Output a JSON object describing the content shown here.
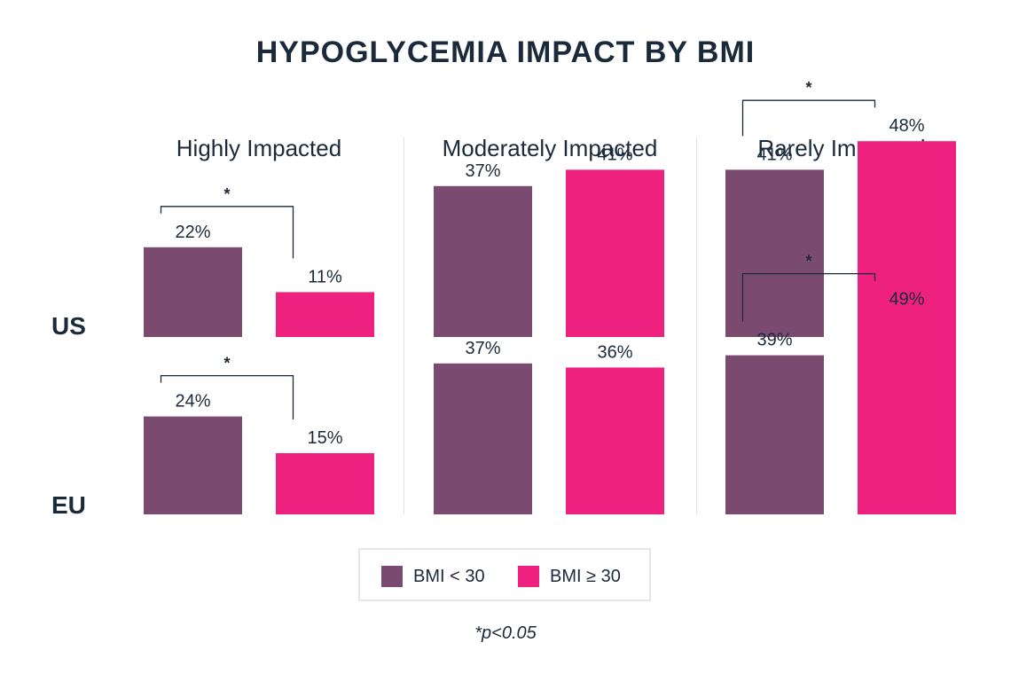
{
  "chart_data": {
    "type": "bar",
    "title": "HYPOGLYCEMIA IMPACT BY BMI",
    "panels": [
      "Highly Impacted",
      "Moderately Impacted",
      "Rarely Impacted"
    ],
    "rows": [
      "US",
      "EU"
    ],
    "series": [
      {
        "name": "BMI < 30",
        "color": "#7b4a70"
      },
      {
        "name": "BMI ≥ 30",
        "color": "#ee2080"
      }
    ],
    "values": {
      "US": [
        [
          22,
          11
        ],
        [
          37,
          41
        ],
        [
          41,
          48
        ]
      ],
      "EU": [
        [
          24,
          15
        ],
        [
          37,
          36
        ],
        [
          39,
          49
        ]
      ]
    },
    "labels": {
      "US": [
        [
          "22%",
          "11%"
        ],
        [
          "37%",
          "41%"
        ],
        [
          "41%",
          "48%"
        ]
      ],
      "EU": [
        [
          "24%",
          "15%"
        ],
        [
          "37%",
          "36%"
        ],
        [
          "39%",
          "49%"
        ]
      ]
    },
    "significance": {
      "US": [
        true,
        false,
        true
      ],
      "EU": [
        true,
        false,
        true
      ]
    },
    "significance_marker": "*",
    "footnote": "*p<0.05",
    "ylim": [
      0,
      50
    ]
  }
}
